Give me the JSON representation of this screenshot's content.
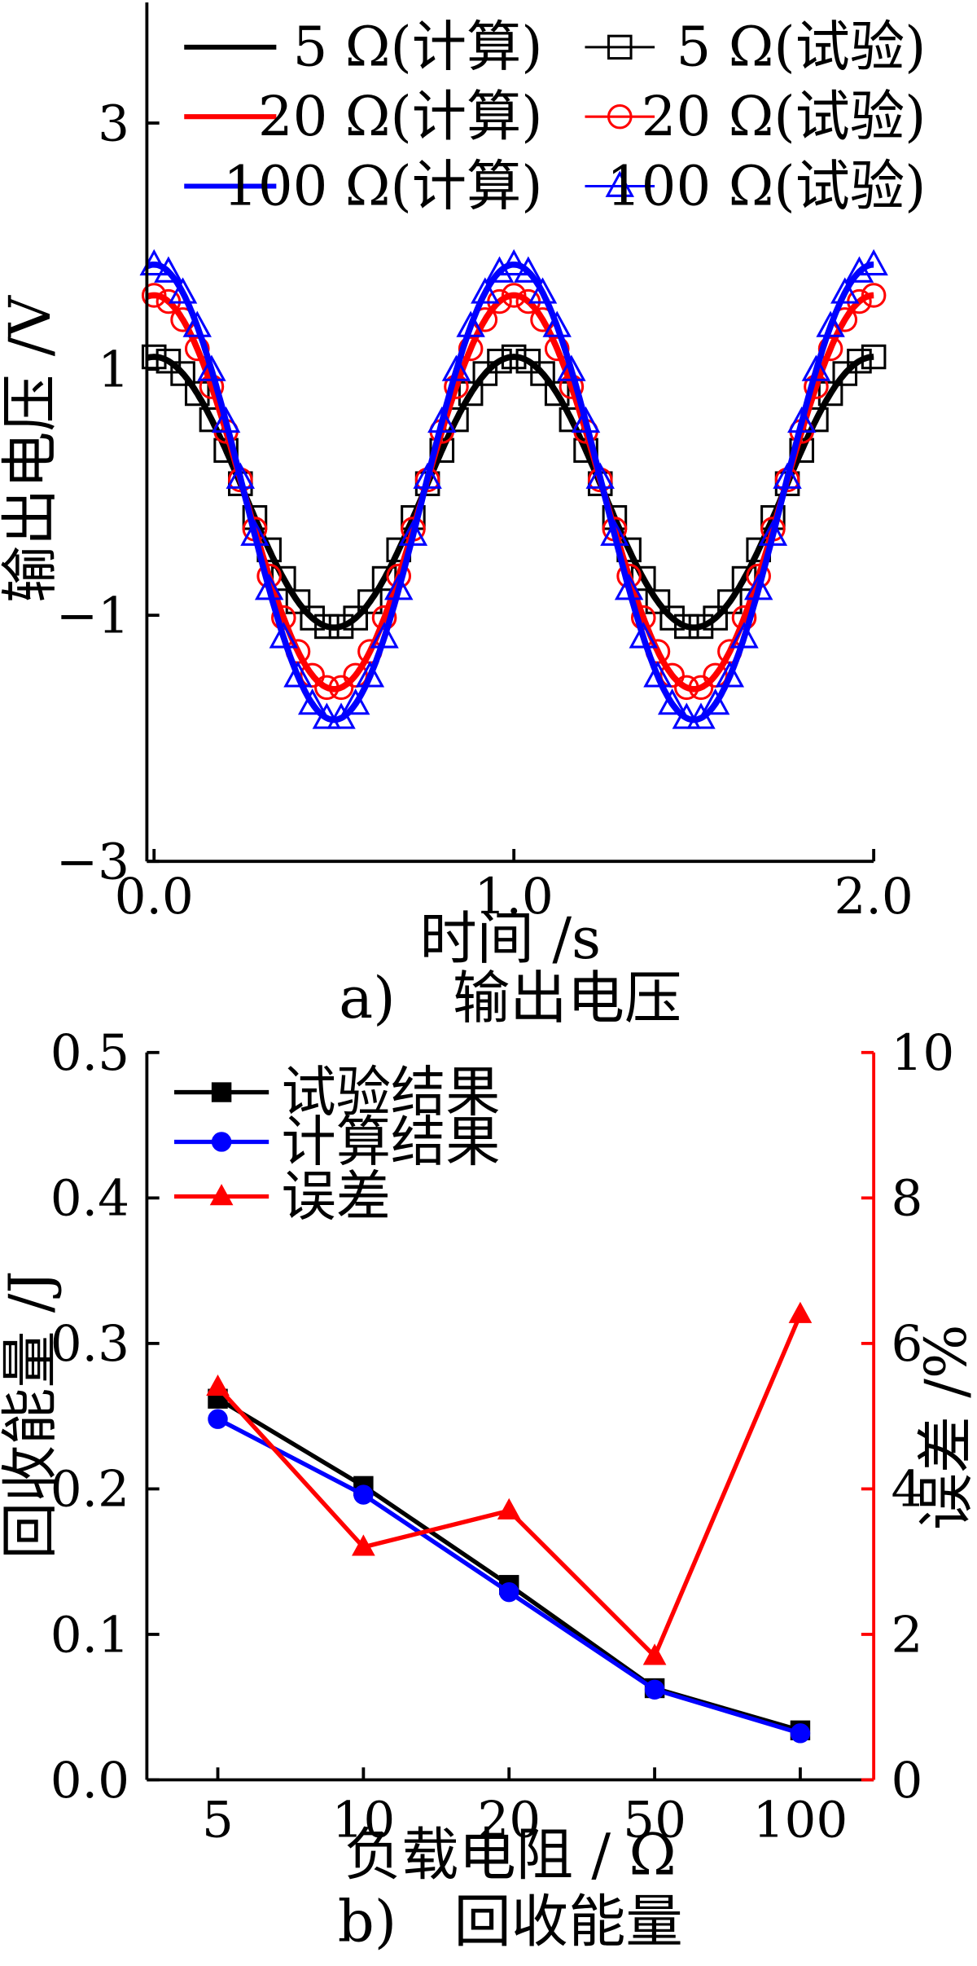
{
  "chart_data": [
    {
      "type": "line",
      "caption": "a)　输出电压",
      "xlabel": "时间 /s",
      "ylabel": "输出电压 /V",
      "xlim": [
        -0.02,
        2.0
      ],
      "ylim": [
        -3.0,
        4.0
      ],
      "x_ticks": [
        0.0,
        1.0,
        2.0
      ],
      "x_tick_labels": [
        "0.0",
        "1.0",
        "2.0"
      ],
      "y_ticks": [
        -3,
        -1,
        1,
        3
      ],
      "y_tick_labels": [
        "−3",
        "−1",
        "1",
        "3"
      ],
      "period": 1.0,
      "legend_position": "top",
      "series": [
        {
          "name": "5 Ω(计算)",
          "amplitude": 1.1,
          "color": "#000000",
          "style": "line"
        },
        {
          "name": "5 Ω(试验)",
          "amplitude": 1.1,
          "color": "#000000",
          "style": "marker",
          "marker": "square"
        },
        {
          "name": "20 Ω(计算)",
          "amplitude": 1.6,
          "color": "#ff0000",
          "style": "line"
        },
        {
          "name": "20 Ω(试验)",
          "amplitude": 1.6,
          "color": "#ff0000",
          "style": "marker",
          "marker": "circle"
        },
        {
          "name": "100 Ω(计算)",
          "amplitude": 1.85,
          "color": "#0000ff",
          "style": "line"
        },
        {
          "name": "100 Ω(试验)",
          "amplitude": 1.85,
          "color": "#0000ff",
          "style": "marker",
          "marker": "triangle"
        }
      ]
    },
    {
      "type": "line",
      "caption": "b)　回收能量",
      "xlabel": "负载电阻 / Ω",
      "ylabel": "回收能量 /J",
      "y2label": "误差 /%",
      "categories": [
        "5",
        "10",
        "20",
        "50",
        "100"
      ],
      "ylim": [
        0.0,
        0.5
      ],
      "y_ticks": [
        0.0,
        0.1,
        0.2,
        0.3,
        0.4,
        0.5
      ],
      "y_tick_labels": [
        "0.0",
        "0.1",
        "0.2",
        "0.3",
        "0.4",
        "0.5"
      ],
      "y2lim": [
        0,
        10
      ],
      "y2_ticks": [
        0,
        2,
        4,
        6,
        8,
        10
      ],
      "y2_tick_labels": [
        "0",
        "2",
        "4",
        "6",
        "8",
        "10"
      ],
      "legend_position": "top-left",
      "series": [
        {
          "name": "试验结果",
          "values": [
            0.262,
            0.202,
            0.134,
            0.063,
            0.034
          ],
          "color": "#000000",
          "marker": "square",
          "axis": "left"
        },
        {
          "name": "计算结果",
          "values": [
            0.248,
            0.196,
            0.129,
            0.062,
            0.032
          ],
          "color": "#0000ff",
          "marker": "circle",
          "axis": "left"
        },
        {
          "name": "误差",
          "values": [
            5.4,
            3.2,
            3.7,
            1.7,
            6.4
          ],
          "color": "#ff0000",
          "marker": "triangle",
          "axis": "right"
        }
      ]
    }
  ]
}
